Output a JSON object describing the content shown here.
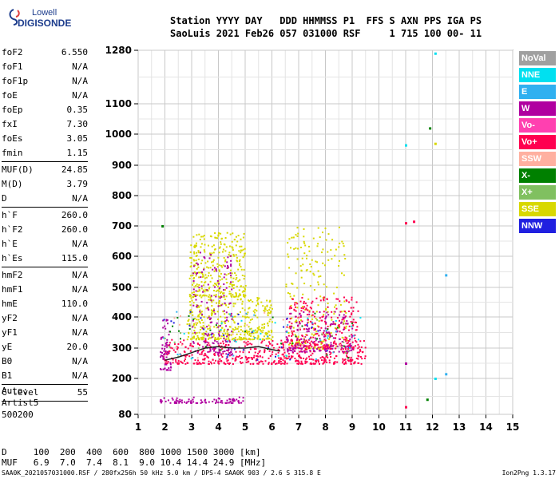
{
  "logo": {
    "line1": "Lowell",
    "line2": "DIGISONDE"
  },
  "header": {
    "line1": "Station YYYY DAY   DDD HHMMSS P1  FFS S AXN PPS IGA PS",
    "line2": "SaoLuis 2021 Feb26 057 031000 RSF     1 715 100 00- 11"
  },
  "params": [
    {
      "label": "foF2",
      "value": "6.550"
    },
    {
      "label": "foF1",
      "value": "N/A"
    },
    {
      "label": "foF1p",
      "value": "N/A"
    },
    {
      "label": "foE",
      "value": "N/A"
    },
    {
      "label": "foEp",
      "value": "0.35"
    },
    {
      "label": "fxI",
      "value": "7.30"
    },
    {
      "label": "foEs",
      "value": "3.05"
    },
    {
      "label": "fmin",
      "value": "1.15"
    },
    {
      "sep": true
    },
    {
      "label": "MUF(D)",
      "value": "24.85"
    },
    {
      "label": "M(D)",
      "value": "3.79"
    },
    {
      "label": "D",
      "value": "N/A"
    },
    {
      "sep": true
    },
    {
      "label": "h`F",
      "value": "260.0"
    },
    {
      "label": "h`F2",
      "value": "260.0"
    },
    {
      "label": "h`E",
      "value": "N/A"
    },
    {
      "label": "h`Es",
      "value": "115.0"
    },
    {
      "sep": true
    },
    {
      "label": "hmF2",
      "value": "N/A"
    },
    {
      "label": "hmF1",
      "value": "N/A"
    },
    {
      "label": "hmE",
      "value": "110.0"
    },
    {
      "label": "yF2",
      "value": "N/A"
    },
    {
      "label": "yF1",
      "value": "N/A"
    },
    {
      "label": "yE",
      "value": "20.0"
    },
    {
      "label": "B0",
      "value": "N/A"
    },
    {
      "label": "B1",
      "value": "N/A"
    },
    {
      "sep": true
    },
    {
      "label": "C-level",
      "value": "55"
    },
    {
      "sep": true
    }
  ],
  "auto_block": {
    "line1": "Auto:",
    "line2": "Artist5",
    "line3": "500200"
  },
  "legend": [
    {
      "label": "NoVal",
      "color": "#a0a0a0"
    },
    {
      "label": "NNE",
      "color": "#00e0f0"
    },
    {
      "label": "E",
      "color": "#30b0f0"
    },
    {
      "label": "W",
      "color": "#b000a0"
    },
    {
      "label": "Vo-",
      "color": "#ff40b0"
    },
    {
      "label": "Vo+",
      "color": "#ff0050"
    },
    {
      "label": "SSW",
      "color": "#ffb0a0"
    },
    {
      "label": "X-",
      "color": "#008000"
    },
    {
      "label": "X+",
      "color": "#80c060"
    },
    {
      "label": "SSE",
      "color": "#d8d800"
    },
    {
      "label": "NNW",
      "color": "#2020e0"
    }
  ],
  "footer": {
    "d_line": "D     100  200  400  600  800 1000 1500 3000 [km]",
    "muf_line": "MUF   6.9  7.0  7.4  8.1  9.0 10.4 14.4 24.9 [MHz]",
    "source": "SAA0K_2021057031000.RSF / 280fx256h 50 kHz 5.0 km / DPS-4 SAA0K 903 / 2.6 S 315.8 E",
    "version": "Ion2Png 1.3.17"
  },
  "chart_data": {
    "type": "scatter",
    "x_ticks": [
      "1",
      "2",
      "3",
      "4",
      "5",
      "6",
      "7",
      "8",
      "9",
      "10",
      "11",
      "12",
      "13",
      "14",
      "15"
    ],
    "y_ticks": [
      "80",
      "200",
      "300",
      "400",
      "500",
      "600",
      "700",
      "800",
      "900",
      "1000",
      "1100",
      "1280"
    ],
    "xlim": [
      1,
      15
    ],
    "ylim": [
      80,
      1280
    ],
    "grid": true,
    "y_scale": "nonlinear",
    "traces": [
      {
        "name": "F-layer trace",
        "x": [
          2.0,
          2.5,
          3.0,
          3.5,
          4.0,
          4.5,
          5.0,
          5.5,
          6.0,
          6.3
        ],
        "y": [
          260,
          270,
          285,
          300,
          305,
          300,
          300,
          305,
          295,
          290
        ]
      }
    ],
    "clusters": [
      {
        "color_key": "Vo+",
        "x_range": [
          1.9,
          9.5
        ],
        "y_range": [
          250,
          330
        ]
      },
      {
        "color_key": "SSE",
        "x_range": [
          2.8,
          6.0
        ],
        "y_range": [
          330,
          470
        ]
      },
      {
        "color_key": "SSE",
        "x_range": [
          2.9,
          5.0
        ],
        "y_range": [
          470,
          680
        ]
      },
      {
        "color_key": "W",
        "x_range": [
          3.0,
          4.5
        ],
        "y_range": [
          280,
          620
        ]
      },
      {
        "color_key": "W",
        "x_range": [
          1.8,
          2.2
        ],
        "y_range": [
          230,
          400
        ]
      },
      {
        "color_key": "SSE",
        "x_range": [
          6.5,
          8.8
        ],
        "y_range": [
          300,
          700
        ]
      },
      {
        "color_key": "Vo+",
        "x_range": [
          6.5,
          9.2
        ],
        "y_range": [
          300,
          470
        ]
      },
      {
        "color_key": "W",
        "x_range": [
          6.5,
          9.0
        ],
        "y_range": [
          290,
          420
        ]
      },
      {
        "color_key": "W",
        "x_range": [
          1.8,
          4.9
        ],
        "y_range": [
          120,
          140
        ]
      }
    ],
    "outliers": [
      {
        "color_key": "NNE",
        "x": 12.1,
        "y": 1270
      },
      {
        "color_key": "X-",
        "x": 11.9,
        "y": 1020
      },
      {
        "color_key": "SSE",
        "x": 12.1,
        "y": 970
      },
      {
        "color_key": "NNE",
        "x": 11.0,
        "y": 965
      },
      {
        "color_key": "Vo+",
        "x": 11.0,
        "y": 710
      },
      {
        "color_key": "Vo+",
        "x": 11.3,
        "y": 715
      },
      {
        "color_key": "E",
        "x": 12.5,
        "y": 540
      },
      {
        "color_key": "NNE",
        "x": 12.1,
        "y": 200
      },
      {
        "color_key": "E",
        "x": 12.5,
        "y": 215
      },
      {
        "color_key": "X-",
        "x": 11.8,
        "y": 130
      },
      {
        "color_key": "Vo+",
        "x": 11.0,
        "y": 105
      },
      {
        "color_key": "W",
        "x": 11.0,
        "y": 250
      },
      {
        "color_key": "X-",
        "x": 1.9,
        "y": 700
      }
    ]
  }
}
